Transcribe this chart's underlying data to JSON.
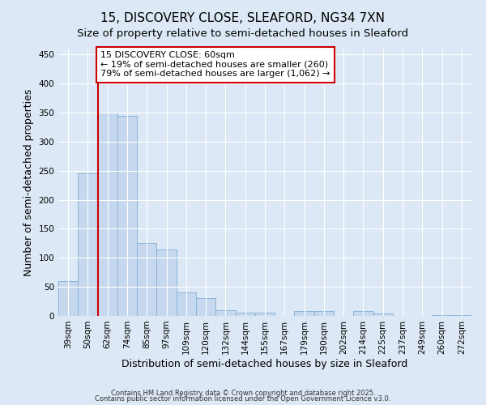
{
  "title": "15, DISCOVERY CLOSE, SLEAFORD, NG34 7XN",
  "subtitle": "Size of property relative to semi-detached houses in Sleaford",
  "xlabel": "Distribution of semi-detached houses by size in Sleaford",
  "ylabel": "Number of semi-detached properties",
  "bar_labels": [
    "39sqm",
    "50sqm",
    "62sqm",
    "74sqm",
    "85sqm",
    "97sqm",
    "109sqm",
    "120sqm",
    "132sqm",
    "144sqm",
    "155sqm",
    "167sqm",
    "179sqm",
    "190sqm",
    "202sqm",
    "214sqm",
    "225sqm",
    "237sqm",
    "249sqm",
    "260sqm",
    "272sqm"
  ],
  "bar_values": [
    60,
    245,
    350,
    345,
    125,
    115,
    40,
    30,
    10,
    6,
    6,
    0,
    8,
    8,
    0,
    8,
    4,
    0,
    0,
    2,
    2
  ],
  "bar_color": "#c5d8ee",
  "bar_edge_color": "#8ab4d8",
  "vline_x_index": 2,
  "vline_color": "#cc0000",
  "annotation_title": "15 DISCOVERY CLOSE: 60sqm",
  "annotation_line1": "← 19% of semi-detached houses are smaller (260)",
  "annotation_line2": "79% of semi-detached houses are larger (1,062) →",
  "annotation_box_color": "#cc0000",
  "ylim": [
    0,
    460
  ],
  "yticks": [
    0,
    50,
    100,
    150,
    200,
    250,
    300,
    350,
    400,
    450
  ],
  "background_color": "#dce8f5",
  "plot_bg_color": "#dce8f5",
  "footer_line1": "Contains HM Land Registry data © Crown copyright and database right 2025.",
  "footer_line2": "Contains public sector information licensed under the Open Government Licence v3.0.",
  "title_fontsize": 11,
  "subtitle_fontsize": 9.5,
  "axis_label_fontsize": 9,
  "tick_fontsize": 7.5,
  "annotation_fontsize": 8
}
